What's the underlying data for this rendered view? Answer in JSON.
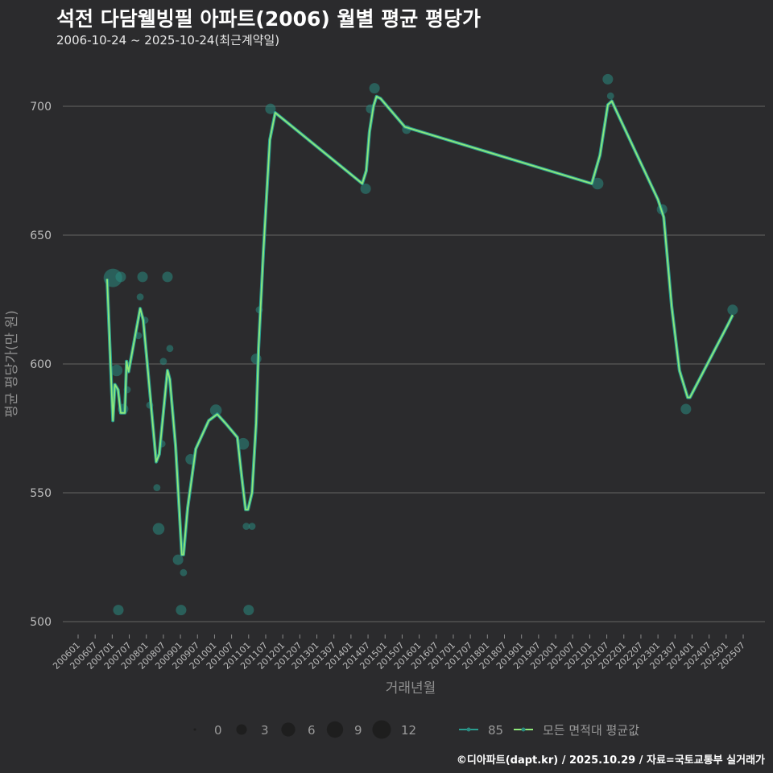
{
  "title": "석전 다담웰빙필 아파트(2006) 월별 평균 평당가",
  "subtitle": "2006-10-24 ~ 2025-10-24(최근계약일)",
  "footer": "©디아파트(dapt.kr) / 2025.10.29 / 자료=국토교통부 실거래가",
  "colors": {
    "background": "#2b2b2d",
    "grid": "#5a5a5a",
    "line_all": "#8ee87a",
    "line_85": "#2a9d8f",
    "points": "#2a8a80"
  },
  "chart_data": {
    "type": "line",
    "title": "석전 다담웰빙필 아파트(2006) 월별 평균 평당가",
    "xlabel": "거래년월",
    "ylabel": "평균 평당가(만 원)",
    "ylim": [
      495,
      715
    ],
    "xlim": [
      2005.7,
      2026.2
    ],
    "yticks": [
      500,
      550,
      600,
      650,
      700
    ],
    "xticks": [
      "200601",
      "200607",
      "200701",
      "200707",
      "200801",
      "200807",
      "200901",
      "200907",
      "201001",
      "201007",
      "201101",
      "201107",
      "201201",
      "201207",
      "201301",
      "201307",
      "201401",
      "201407",
      "201501",
      "201507",
      "201601",
      "201607",
      "201701",
      "201707",
      "201801",
      "201807",
      "201901",
      "201907",
      "202001",
      "202007",
      "202101",
      "202107",
      "202201",
      "202207",
      "202301",
      "202307",
      "202401",
      "202407",
      "202501",
      "202507"
    ],
    "grid": true,
    "legend": {
      "placement": "bottom",
      "size_title": "",
      "size_values": [
        0,
        3,
        6,
        9,
        12
      ],
      "series_labels": [
        "85",
        "모든 면적대 평균값"
      ]
    },
    "line_points": [
      [
        2006.85,
        633
      ],
      [
        2007.02,
        578
      ],
      [
        2007.08,
        592
      ],
      [
        2007.17,
        590
      ],
      [
        2007.25,
        581
      ],
      [
        2007.37,
        581
      ],
      [
        2007.42,
        601
      ],
      [
        2007.48,
        597
      ],
      [
        2007.82,
        621.5
      ],
      [
        2007.91,
        617
      ],
      [
        2008.05,
        597
      ],
      [
        2008.29,
        562
      ],
      [
        2008.38,
        565
      ],
      [
        2008.62,
        597.5
      ],
      [
        2008.69,
        594
      ],
      [
        2008.86,
        568
      ],
      [
        2009.04,
        526
      ],
      [
        2009.09,
        526
      ],
      [
        2009.21,
        544
      ],
      [
        2009.45,
        567
      ],
      [
        2009.83,
        578
      ],
      [
        2010.08,
        580.5
      ],
      [
        2010.32,
        577
      ],
      [
        2010.67,
        571.5
      ],
      [
        2010.79,
        557
      ],
      [
        2010.91,
        543.5
      ],
      [
        2010.98,
        543.5
      ],
      [
        2011.1,
        550
      ],
      [
        2011.22,
        577
      ],
      [
        2011.29,
        606
      ],
      [
        2011.43,
        643
      ],
      [
        2011.62,
        687
      ],
      [
        2011.78,
        697.5
      ],
      [
        2014.33,
        670
      ],
      [
        2014.45,
        675
      ],
      [
        2014.54,
        690
      ],
      [
        2014.66,
        700
      ],
      [
        2014.75,
        703.8
      ],
      [
        2014.87,
        703
      ],
      [
        2015.58,
        692
      ],
      [
        2021.06,
        670
      ],
      [
        2021.3,
        681
      ],
      [
        2021.53,
        700.6
      ],
      [
        2021.65,
        702
      ],
      [
        2021.77,
        698.5
      ],
      [
        2023.0,
        663.8
      ],
      [
        2023.17,
        657
      ],
      [
        2023.4,
        622.5
      ],
      [
        2023.63,
        597.5
      ],
      [
        2023.87,
        587
      ],
      [
        2023.94,
        587
      ],
      [
        2025.08,
        616
      ],
      [
        2025.19,
        619
      ]
    ],
    "scatter_85": [
      [
        2007.02,
        633.4,
        12
      ],
      [
        2007.25,
        633.8,
        3
      ],
      [
        2007.89,
        633.8,
        3
      ],
      [
        2008.62,
        633.8,
        3
      ],
      [
        2007.82,
        626,
        1
      ],
      [
        2007.13,
        597.5,
        4
      ],
      [
        2007.32,
        582.5,
        3
      ],
      [
        2007.44,
        590,
        1
      ],
      [
        2007.77,
        611,
        1
      ],
      [
        2007.96,
        617,
        1
      ],
      [
        2008.1,
        584,
        1
      ],
      [
        2008.5,
        601,
        1
      ],
      [
        2008.69,
        606,
        1
      ],
      [
        2008.31,
        552,
        1
      ],
      [
        2008.36,
        536,
        4
      ],
      [
        2008.46,
        569,
        1
      ],
      [
        2007.18,
        504.5,
        3
      ],
      [
        2009.02,
        504.5,
        3
      ],
      [
        2008.93,
        524,
        3
      ],
      [
        2009.09,
        519,
        1
      ],
      [
        2009.3,
        563,
        3
      ],
      [
        2010.04,
        582,
        4
      ],
      [
        2010.84,
        569,
        4
      ],
      [
        2010.93,
        537,
        1
      ],
      [
        2011.1,
        537,
        1
      ],
      [
        2011.0,
        504.5,
        3
      ],
      [
        2011.22,
        602,
        3
      ],
      [
        2011.31,
        621,
        1
      ],
      [
        2011.64,
        699,
        3
      ],
      [
        2014.43,
        668,
        3
      ],
      [
        2014.69,
        707,
        3
      ],
      [
        2014.57,
        699,
        2
      ],
      [
        2015.63,
        691,
        2
      ],
      [
        2021.23,
        670,
        4
      ],
      [
        2021.53,
        710.5,
        3
      ],
      [
        2021.61,
        704,
        1
      ],
      [
        2023.12,
        660,
        3
      ],
      [
        2023.82,
        582.5,
        3
      ],
      [
        2025.19,
        621,
        3
      ]
    ]
  }
}
